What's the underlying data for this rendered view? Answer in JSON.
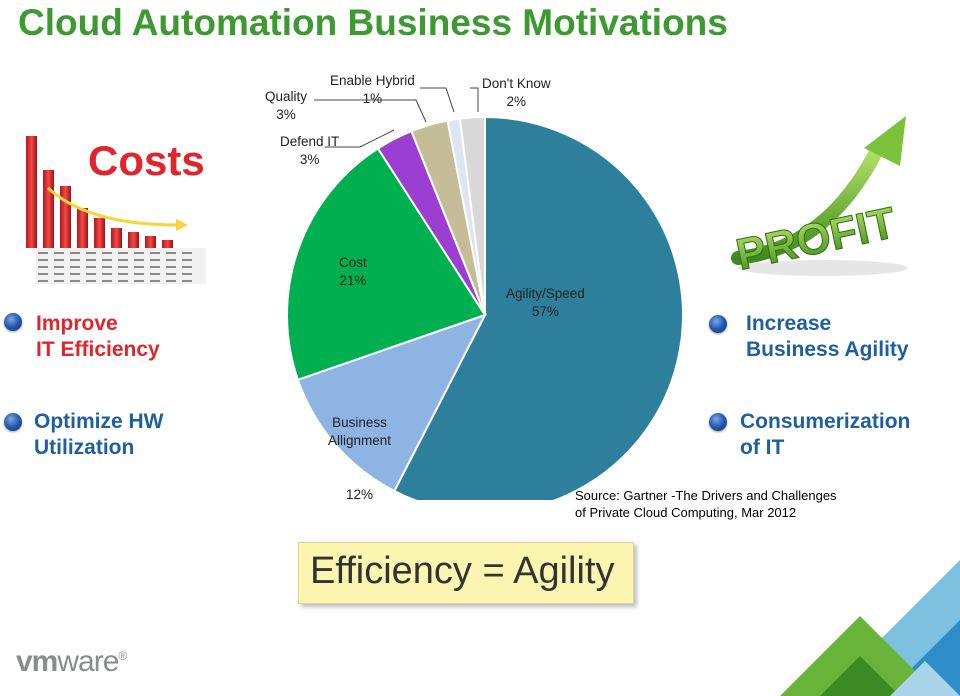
{
  "title": "Cloud Automation Business Motivations",
  "costs_label": "Costs",
  "profit_label": "PROFIT",
  "left_bullets": [
    "Improve\nIT Efficiency",
    "Optimize HW\nUtilization"
  ],
  "right_bullets": [
    "Increase\nBusiness Agility",
    "Consumerization\nof IT"
  ],
  "source": "Source: Gartner -The Drivers and Challenges\nof Private Cloud Computing, Mar 2012",
  "tagline": "Efficiency = Agility",
  "logo": {
    "vm": "vm",
    "ware": "ware",
    "reg": "®"
  },
  "colors": {
    "title": "#3c9a30",
    "red": "#e0262c",
    "blue": "#1f5f9f",
    "agility": "#2e7f9b",
    "business": "#8db4e2",
    "cost": "#00b050",
    "defend": "#9b3fd3",
    "quality": "#c4bd97",
    "hybrid": "#dce6f2",
    "dontknow": "#d9d9d9"
  },
  "chart_data": {
    "type": "pie",
    "series": [
      {
        "name": "Agility/Speed",
        "value": 57,
        "label": "57%"
      },
      {
        "name": "Business\nAllignment",
        "value": 12,
        "label": "12%"
      },
      {
        "name": "Cost",
        "value": 21,
        "label": "21%"
      },
      {
        "name": "Defend IT",
        "value": 3,
        "label": "3%"
      },
      {
        "name": "Quality",
        "value": 3,
        "label": "3%"
      },
      {
        "name": "Enable Hybrid",
        "value": 1,
        "label": "1%"
      },
      {
        "name": "Don't Know",
        "value": 2,
        "label": "2%"
      }
    ]
  }
}
